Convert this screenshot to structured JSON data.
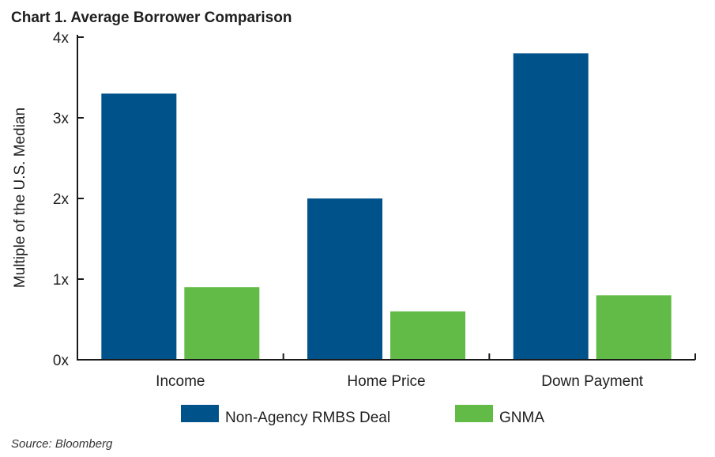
{
  "chart_title": "Chart 1. Average Borrower Comparison",
  "source": "Source: Bloomberg",
  "chart_data": {
    "type": "bar",
    "title": "Chart 1. Average Borrower Comparison",
    "xlabel": "",
    "ylabel": "Multiple of the U.S. Median",
    "categories": [
      "Income",
      "Home Price",
      "Down Payment"
    ],
    "series": [
      {
        "name": "Non-Agency RMBS Deal",
        "color": "#00528a",
        "values": [
          3.3,
          2.0,
          3.8
        ]
      },
      {
        "name": "GNMA",
        "color": "#62bb46",
        "values": [
          0.9,
          0.6,
          0.8
        ]
      }
    ],
    "ylim": [
      0,
      4
    ],
    "yticks": [
      0,
      1,
      2,
      3,
      4
    ],
    "ytick_labels": [
      "0x",
      "1x",
      "2x",
      "3x",
      "4x"
    ],
    "grid": false,
    "legend_position": "bottom"
  }
}
